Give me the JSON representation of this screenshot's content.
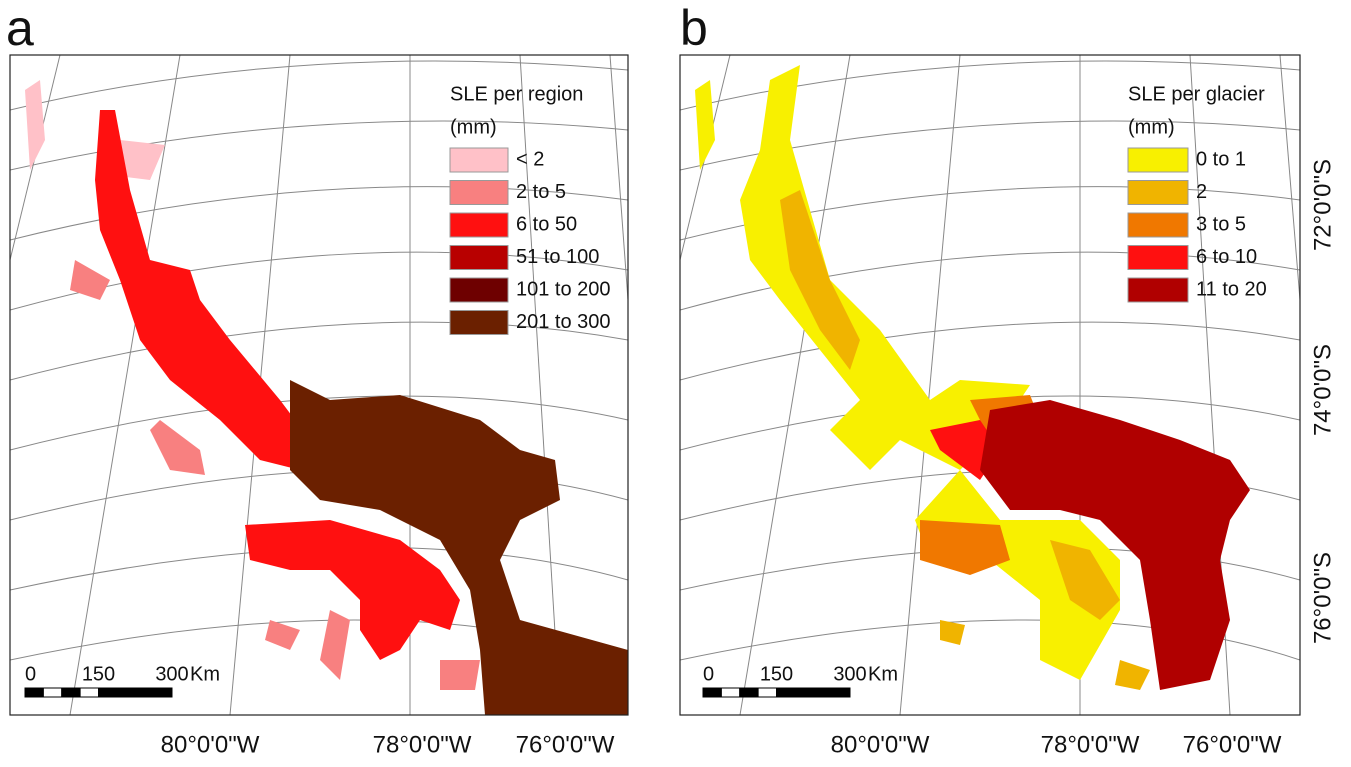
{
  "panels": [
    {
      "label": "a",
      "legend": {
        "title": "SLE per region",
        "unit": "(mm)",
        "items": [
          {
            "label": "< 2",
            "color": "#ffc1c8"
          },
          {
            "label": "2 to 5",
            "color": "#f88080"
          },
          {
            "label": "6 to 50",
            "color": "#ff1010"
          },
          {
            "label": "51 to 100",
            "color": "#b80000"
          },
          {
            "label": "101 to 200",
            "color": "#6e0000"
          },
          {
            "label": "201 to 300",
            "color": "#6b2000"
          }
        ]
      },
      "scale_bar": {
        "ticks": [
          0,
          150,
          300
        ],
        "unit": "Km"
      },
      "lon_labels": [
        "80°0'0\"W",
        "78°0'0\"W",
        "76°0'0\"W"
      ]
    },
    {
      "label": "b",
      "legend": {
        "title": "SLE per glacier",
        "unit": "(mm)",
        "items": [
          {
            "label": "0 to 1",
            "color": "#f8f000"
          },
          {
            "label": "2",
            "color": "#f0b400"
          },
          {
            "label": "3 to 5",
            "color": "#f07800"
          },
          {
            "label": "6 to 10",
            "color": "#ff1010"
          },
          {
            "label": "11 to 20",
            "color": "#b00000"
          }
        ]
      },
      "scale_bar": {
        "ticks": [
          0,
          150,
          300
        ],
        "unit": "Km"
      },
      "lon_labels": [
        "80°0'0\"W",
        "78°0'0\"W",
        "76°0'0\"W"
      ],
      "lat_labels": [
        "72°0'0\"S",
        "74°0'0\"S",
        "76°0'0\"S"
      ]
    }
  ]
}
